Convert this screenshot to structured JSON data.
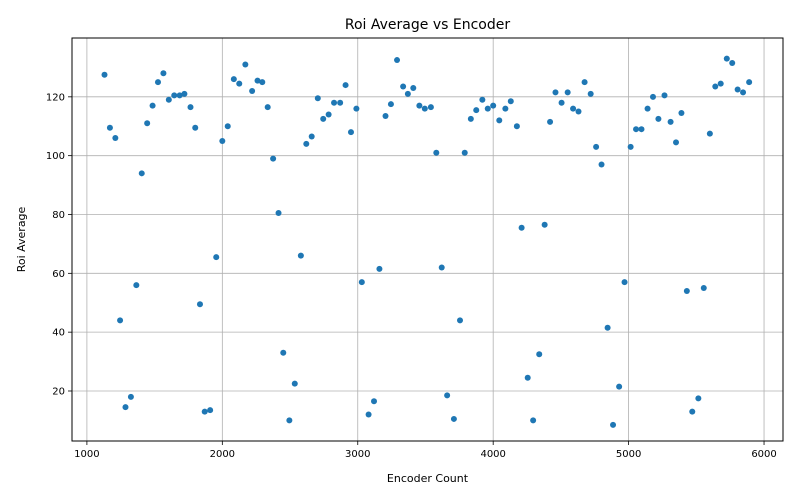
{
  "chart_data": {
    "type": "scatter",
    "title": "Roi Average vs Encoder",
    "xlabel": "Encoder Count",
    "ylabel": "Roi Average",
    "xlim": [
      890,
      6140
    ],
    "ylim": [
      3,
      140
    ],
    "xticks": [
      1000,
      2000,
      3000,
      4000,
      5000,
      6000
    ],
    "yticks": [
      20,
      40,
      60,
      80,
      100,
      120
    ],
    "grid": true,
    "marker_color": "#1f77b4",
    "points": [
      [
        1130,
        127.5
      ],
      [
        1170,
        109.5
      ],
      [
        1210,
        106
      ],
      [
        1245,
        44
      ],
      [
        1285,
        14.5
      ],
      [
        1325,
        18
      ],
      [
        1365,
        56
      ],
      [
        1405,
        94
      ],
      [
        1445,
        111
      ],
      [
        1485,
        117
      ],
      [
        1525,
        125
      ],
      [
        1565,
        128
      ],
      [
        1605,
        119
      ],
      [
        1645,
        120.5
      ],
      [
        1685,
        120.5
      ],
      [
        1720,
        121
      ],
      [
        1765,
        116.5
      ],
      [
        1800,
        109.5
      ],
      [
        1835,
        49.5
      ],
      [
        1870,
        13
      ],
      [
        1910,
        13.5
      ],
      [
        1955,
        65.5
      ],
      [
        2000,
        105
      ],
      [
        2040,
        110
      ],
      [
        2085,
        126
      ],
      [
        2125,
        124.5
      ],
      [
        2170,
        131
      ],
      [
        2220,
        122
      ],
      [
        2260,
        125.5
      ],
      [
        2295,
        125
      ],
      [
        2335,
        116.5
      ],
      [
        2375,
        99
      ],
      [
        2415,
        80.5
      ],
      [
        2450,
        33
      ],
      [
        2495,
        10
      ],
      [
        2535,
        22.5
      ],
      [
        2580,
        66
      ],
      [
        2620,
        104
      ],
      [
        2660,
        106.5
      ],
      [
        2705,
        119.5
      ],
      [
        2745,
        112.5
      ],
      [
        2785,
        114
      ],
      [
        2825,
        118
      ],
      [
        2870,
        118
      ],
      [
        2910,
        124
      ],
      [
        2950,
        108
      ],
      [
        2990,
        116
      ],
      [
        3030,
        57
      ],
      [
        3080,
        12
      ],
      [
        3120,
        16.5
      ],
      [
        3160,
        61.5
      ],
      [
        3205,
        113.5
      ],
      [
        3245,
        117.5
      ],
      [
        3290,
        132.5
      ],
      [
        3335,
        123.5
      ],
      [
        3370,
        121
      ],
      [
        3410,
        123
      ],
      [
        3455,
        117
      ],
      [
        3495,
        116
      ],
      [
        3540,
        116.5
      ],
      [
        3580,
        101
      ],
      [
        3620,
        62
      ],
      [
        3660,
        18.5
      ],
      [
        3710,
        10.5
      ],
      [
        3755,
        44
      ],
      [
        3790,
        101
      ],
      [
        3835,
        112.5
      ],
      [
        3875,
        115.5
      ],
      [
        3920,
        119
      ],
      [
        3960,
        116
      ],
      [
        4000,
        117
      ],
      [
        4045,
        112
      ],
      [
        4090,
        116
      ],
      [
        4130,
        118.5
      ],
      [
        4175,
        110
      ],
      [
        4210,
        75.5
      ],
      [
        4255,
        24.5
      ],
      [
        4295,
        10
      ],
      [
        4340,
        32.5
      ],
      [
        4380,
        76.5
      ],
      [
        4420,
        111.5
      ],
      [
        4460,
        121.5
      ],
      [
        4505,
        118
      ],
      [
        4550,
        121.5
      ],
      [
        4590,
        116
      ],
      [
        4630,
        115
      ],
      [
        4675,
        125
      ],
      [
        4720,
        121
      ],
      [
        4760,
        103
      ],
      [
        4800,
        97
      ],
      [
        4845,
        41.5
      ],
      [
        4885,
        8.5
      ],
      [
        4930,
        21.5
      ],
      [
        4970,
        57
      ],
      [
        5015,
        103
      ],
      [
        5055,
        109
      ],
      [
        5095,
        109
      ],
      [
        5140,
        116
      ],
      [
        5180,
        120
      ],
      [
        5220,
        112.5
      ],
      [
        5265,
        120.5
      ],
      [
        5310,
        111.5
      ],
      [
        5350,
        104.5
      ],
      [
        5390,
        114.5
      ],
      [
        5430,
        54
      ],
      [
        5470,
        13
      ],
      [
        5515,
        17.5
      ],
      [
        5555,
        55
      ],
      [
        5600,
        107.5
      ],
      [
        5640,
        123.5
      ],
      [
        5680,
        124.5
      ],
      [
        5725,
        133
      ],
      [
        5765,
        131.5
      ],
      [
        5805,
        122.5
      ],
      [
        5845,
        121.5
      ],
      [
        5890,
        125
      ]
    ]
  }
}
